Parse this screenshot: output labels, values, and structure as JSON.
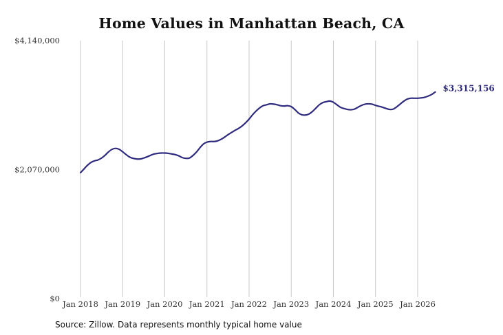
{
  "chart_data": {
    "type": "line",
    "title": "Home Values in Manhattan Beach, CA",
    "xlabel": "",
    "ylabel": "",
    "ylim": [
      0,
      4140000
    ],
    "y_ticks": [
      "$0",
      "$2,070,000",
      "$4,140,000"
    ],
    "y_tick_values": [
      0,
      2070000,
      4140000
    ],
    "x_ticks": [
      "Jan 2018",
      "Jan 2019",
      "Jan 2020",
      "Jan 2021",
      "Jan 2022",
      "Jan 2023",
      "Jan 2024",
      "Jan 2025",
      "Jan 2026"
    ],
    "x_tick_values": [
      "2018-01",
      "2019-01",
      "2020-01",
      "2021-01",
      "2022-01",
      "2023-01",
      "2024-01",
      "2025-01",
      "2026-01"
    ],
    "grid": "vertical",
    "series": [
      {
        "color": "#2e2a7e",
        "end_label": "$3,315,156",
        "points": [
          [
            "2018-01",
            2020000
          ],
          [
            "2018-02",
            2080000
          ],
          [
            "2018-03",
            2140000
          ],
          [
            "2018-04",
            2185000
          ],
          [
            "2018-05",
            2210000
          ],
          [
            "2018-06",
            2225000
          ],
          [
            "2018-07",
            2255000
          ],
          [
            "2018-08",
            2300000
          ],
          [
            "2018-09",
            2355000
          ],
          [
            "2018-10",
            2395000
          ],
          [
            "2018-11",
            2410000
          ],
          [
            "2018-12",
            2395000
          ],
          [
            "2019-01",
            2355000
          ],
          [
            "2019-02",
            2310000
          ],
          [
            "2019-03",
            2270000
          ],
          [
            "2019-04",
            2250000
          ],
          [
            "2019-05",
            2240000
          ],
          [
            "2019-06",
            2240000
          ],
          [
            "2019-07",
            2255000
          ],
          [
            "2019-08",
            2275000
          ],
          [
            "2019-09",
            2300000
          ],
          [
            "2019-10",
            2320000
          ],
          [
            "2019-11",
            2330000
          ],
          [
            "2019-12",
            2335000
          ],
          [
            "2020-01",
            2335000
          ],
          [
            "2020-02",
            2330000
          ],
          [
            "2020-03",
            2320000
          ],
          [
            "2020-04",
            2310000
          ],
          [
            "2020-05",
            2290000
          ],
          [
            "2020-06",
            2262000
          ],
          [
            "2020-07",
            2250000
          ],
          [
            "2020-08",
            2255000
          ],
          [
            "2020-09",
            2295000
          ],
          [
            "2020-10",
            2350000
          ],
          [
            "2020-11",
            2420000
          ],
          [
            "2020-12",
            2480000
          ],
          [
            "2021-01",
            2510000
          ],
          [
            "2021-02",
            2520000
          ],
          [
            "2021-03",
            2520000
          ],
          [
            "2021-04",
            2530000
          ],
          [
            "2021-05",
            2555000
          ],
          [
            "2021-06",
            2590000
          ],
          [
            "2021-07",
            2630000
          ],
          [
            "2021-08",
            2665000
          ],
          [
            "2021-09",
            2700000
          ],
          [
            "2021-10",
            2730000
          ],
          [
            "2021-11",
            2770000
          ],
          [
            "2021-12",
            2820000
          ],
          [
            "2022-01",
            2880000
          ],
          [
            "2022-02",
            2950000
          ],
          [
            "2022-03",
            3010000
          ],
          [
            "2022-04",
            3060000
          ],
          [
            "2022-05",
            3095000
          ],
          [
            "2022-06",
            3110000
          ],
          [
            "2022-07",
            3125000
          ],
          [
            "2022-08",
            3120000
          ],
          [
            "2022-09",
            3110000
          ],
          [
            "2022-10",
            3095000
          ],
          [
            "2022-11",
            3090000
          ],
          [
            "2022-12",
            3095000
          ],
          [
            "2023-01",
            3080000
          ],
          [
            "2023-02",
            3035000
          ],
          [
            "2023-03",
            2980000
          ],
          [
            "2023-04",
            2950000
          ],
          [
            "2023-05",
            2945000
          ],
          [
            "2023-06",
            2960000
          ],
          [
            "2023-07",
            3000000
          ],
          [
            "2023-08",
            3055000
          ],
          [
            "2023-09",
            3110000
          ],
          [
            "2023-10",
            3145000
          ],
          [
            "2023-11",
            3160000
          ],
          [
            "2023-12",
            3170000
          ],
          [
            "2024-01",
            3150000
          ],
          [
            "2024-02",
            3110000
          ],
          [
            "2024-03",
            3070000
          ],
          [
            "2024-04",
            3050000
          ],
          [
            "2024-05",
            3035000
          ],
          [
            "2024-06",
            3030000
          ],
          [
            "2024-07",
            3040000
          ],
          [
            "2024-08",
            3070000
          ],
          [
            "2024-09",
            3100000
          ],
          [
            "2024-10",
            3120000
          ],
          [
            "2024-11",
            3125000
          ],
          [
            "2024-12",
            3120000
          ],
          [
            "2025-01",
            3100000
          ],
          [
            "2025-02",
            3085000
          ],
          [
            "2025-03",
            3070000
          ],
          [
            "2025-04",
            3050000
          ],
          [
            "2025-05",
            3035000
          ],
          [
            "2025-06",
            3040000
          ],
          [
            "2025-07",
            3075000
          ],
          [
            "2025-08",
            3120000
          ],
          [
            "2025-09",
            3165000
          ],
          [
            "2025-10",
            3200000
          ],
          [
            "2025-11",
            3215000
          ],
          [
            "2025-12",
            3215000
          ],
          [
            "2026-01",
            3215000
          ],
          [
            "2026-02",
            3220000
          ],
          [
            "2026-03",
            3230000
          ],
          [
            "2026-04",
            3250000
          ],
          [
            "2026-05",
            3275000
          ],
          [
            "2026-06",
            3315156
          ]
        ]
      }
    ]
  },
  "footer": {
    "source": "Source: Zillow. Data represents monthly typical home value"
  }
}
